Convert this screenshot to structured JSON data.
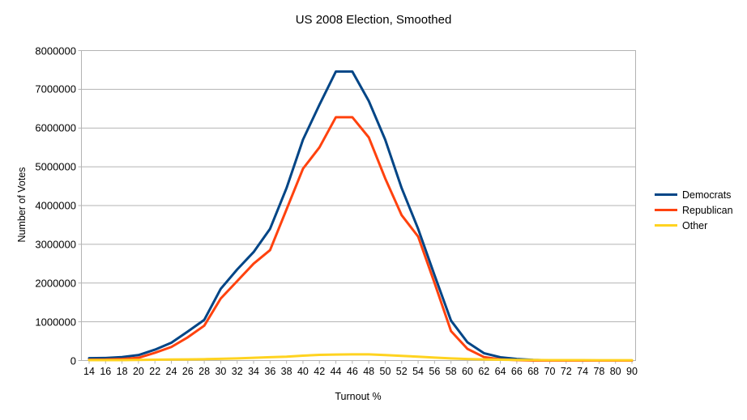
{
  "chart_data": {
    "type": "line",
    "title": "US 2008 Election, Smoothed",
    "xlabel": "Turnout %",
    "ylabel": "Number of Votes",
    "ylim": [
      0,
      8000000
    ],
    "ytick_step": 1000000,
    "grid": true,
    "grid_color": "#b3b3b3",
    "legend_position": "right",
    "line_width": 3,
    "categories": [
      14,
      16,
      18,
      20,
      22,
      24,
      26,
      28,
      30,
      32,
      34,
      36,
      38,
      40,
      42,
      44,
      46,
      48,
      50,
      52,
      54,
      56,
      58,
      60,
      62,
      64,
      66,
      68,
      70,
      72,
      74,
      78,
      80,
      90
    ],
    "series": [
      {
        "name": "Democrats",
        "color": "#004586",
        "values": [
          60000,
          65000,
          90000,
          140000,
          280000,
          460000,
          750000,
          1050000,
          1850000,
          2350000,
          2800000,
          3400000,
          4450000,
          5700000,
          6600000,
          7460000,
          7460000,
          6700000,
          5700000,
          4450000,
          3400000,
          2200000,
          1030000,
          470000,
          190000,
          85000,
          40000,
          15000,
          5000,
          0,
          0,
          0,
          0,
          0
        ]
      },
      {
        "name": "Republican",
        "color": "#ff420e",
        "values": [
          20000,
          25000,
          40000,
          70000,
          200000,
          350000,
          600000,
          900000,
          1600000,
          2050000,
          2500000,
          2850000,
          3900000,
          4950000,
          5500000,
          6280000,
          6280000,
          5760000,
          4700000,
          3750000,
          3200000,
          2000000,
          760000,
          300000,
          90000,
          30000,
          10000,
          0,
          0,
          0,
          0,
          0,
          0,
          0
        ]
      },
      {
        "name": "Other",
        "color": "#ffd320",
        "values": [
          10000,
          10000,
          10000,
          15000,
          20000,
          25000,
          30000,
          35000,
          45000,
          55000,
          70000,
          85000,
          100000,
          125000,
          145000,
          155000,
          160000,
          160000,
          140000,
          120000,
          100000,
          75000,
          55000,
          40000,
          28000,
          20000,
          15000,
          12000,
          10000,
          10000,
          10000,
          8000,
          8000,
          8000
        ]
      }
    ]
  }
}
